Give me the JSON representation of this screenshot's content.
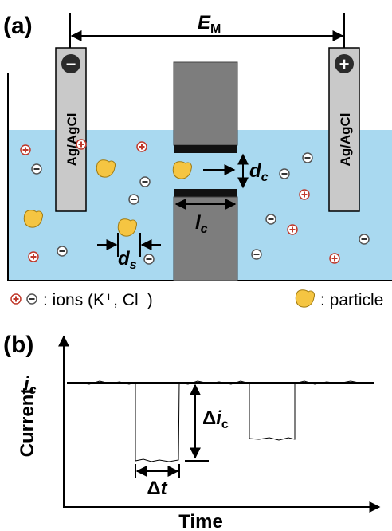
{
  "panel_a": {
    "label": "(a)",
    "voltage": {
      "symbol": "E",
      "subscript": "M"
    },
    "electrodes": [
      {
        "label": "Ag/AgCl",
        "sign": "−"
      },
      {
        "label": "Ag/AgCl",
        "sign": "+"
      }
    ],
    "pore_diameter": {
      "symbol": "d",
      "subscript": "c"
    },
    "pore_length": {
      "symbol": "l",
      "subscript": "c"
    },
    "particle_diameter": {
      "symbol": "d",
      "subscript": "s"
    },
    "legend": {
      "ions": ": ions (K⁺, Cl⁻)",
      "particle": ": particle"
    }
  },
  "panel_b": {
    "label": "(b)",
    "y_axis": "Current",
    "x_axis": "Time",
    "baseline": {
      "symbol": "i",
      "subscript": "c"
    },
    "amplitude": {
      "prefix": "Δ",
      "symbol": "i",
      "subscript": "c"
    },
    "duration": {
      "prefix": "Δ",
      "symbol": "t"
    }
  }
}
